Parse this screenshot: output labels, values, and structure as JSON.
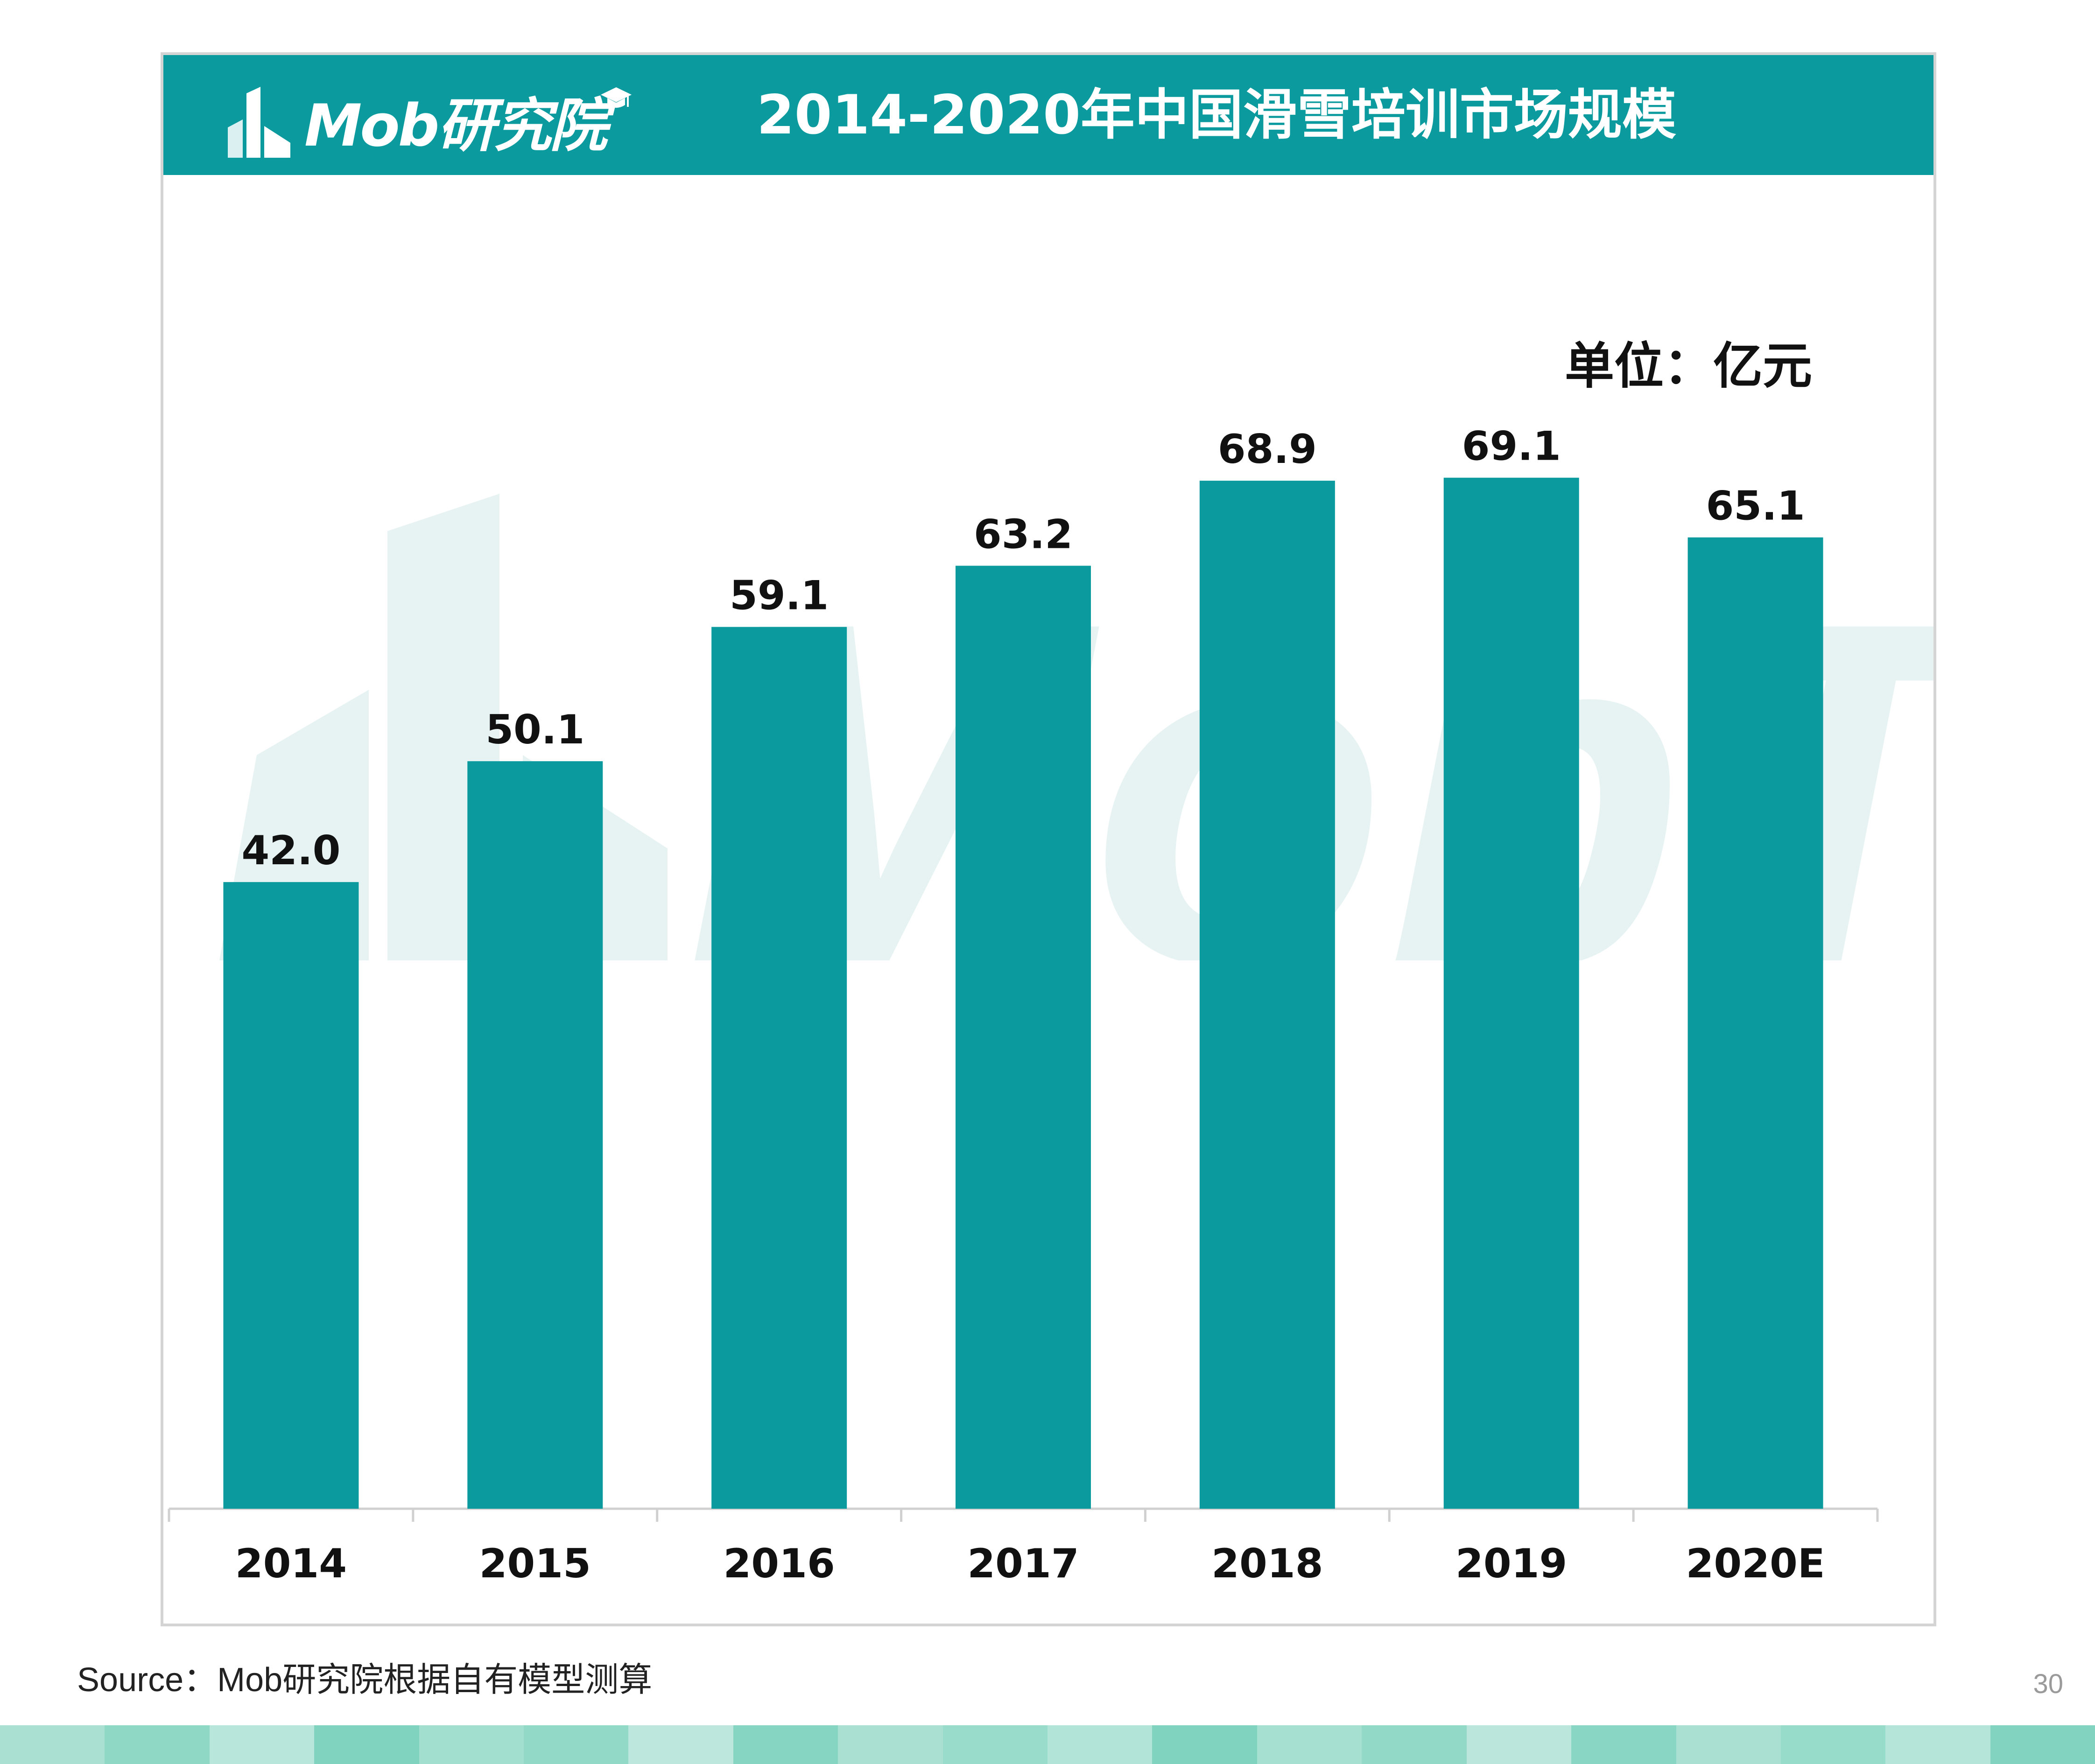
{
  "header": {
    "logo_text": "Mob研究院",
    "title": "2014-2020年中国滑雪培训市场规模"
  },
  "unit_label": "单位：亿元",
  "watermark_text": "MobTech袤博",
  "colors": {
    "brand_teal": "#0b9b9f",
    "watermark": "#e6f3f2",
    "axis": "#d0d0d0",
    "text": "#111111"
  },
  "chart_data": {
    "type": "bar",
    "title": "2014-2020年中国滑雪培训市场规模",
    "unit": "单位：亿元",
    "categories": [
      "2014",
      "2015",
      "2016",
      "2017",
      "2018",
      "2019",
      "2020E"
    ],
    "values": [
      42.0,
      50.1,
      59.1,
      63.2,
      68.9,
      69.1,
      65.1
    ],
    "value_labels": [
      "42.0",
      "50.1",
      "59.1",
      "63.2",
      "68.9",
      "69.1",
      "65.1"
    ],
    "xlabel": "",
    "ylabel": "",
    "ylim": [
      0,
      73.5
    ],
    "y_axis_visible": false,
    "grid": false,
    "legend": "none",
    "bar_color": "#0b9b9f"
  },
  "source": "Source：Mob研究院根据自有模型测算",
  "page_number": "30"
}
